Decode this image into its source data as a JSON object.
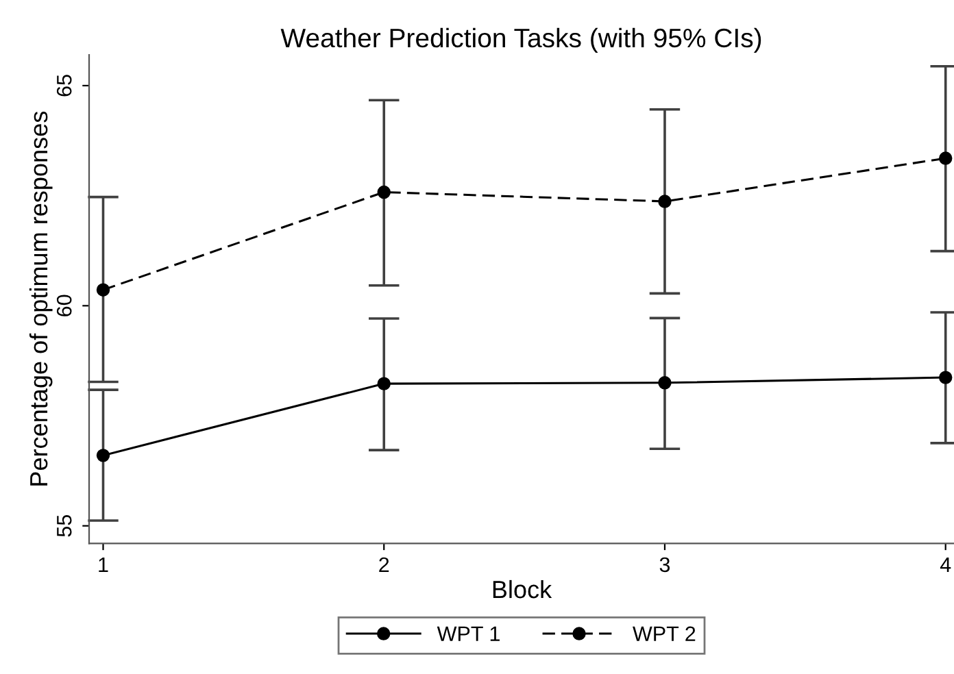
{
  "chart_data": {
    "type": "line",
    "title": "Weather Prediction Tasks (with 95% CIs)",
    "xlabel": "Block",
    "ylabel": "Percentage of optimum responses",
    "x": [
      1,
      2,
      3,
      4
    ],
    "xlim": [
      0.95,
      4.03
    ],
    "xticks": [
      1,
      2,
      3,
      4
    ],
    "ylim": [
      54.6,
      65.7
    ],
    "yticks": [
      55,
      60,
      65
    ],
    "series": [
      {
        "name": "WPT 1",
        "color": "#000000",
        "line_style": "solid",
        "values": [
          56.6,
          58.23,
          58.25,
          58.37
        ],
        "errors": [
          [
            55.12,
            58.09
          ],
          [
            56.72,
            59.71
          ],
          [
            56.75,
            59.72
          ],
          [
            56.88,
            59.85
          ]
        ]
      },
      {
        "name": "WPT 2",
        "color": "#000000",
        "line_style": "dashed",
        "values": [
          60.36,
          62.58,
          62.37,
          63.35
        ],
        "errors": [
          [
            58.27,
            62.47
          ],
          [
            60.46,
            64.67
          ],
          [
            60.28,
            64.46
          ],
          [
            61.24,
            65.44
          ]
        ]
      }
    ],
    "marker": "circle",
    "grid": false,
    "legend": "bottom"
  }
}
